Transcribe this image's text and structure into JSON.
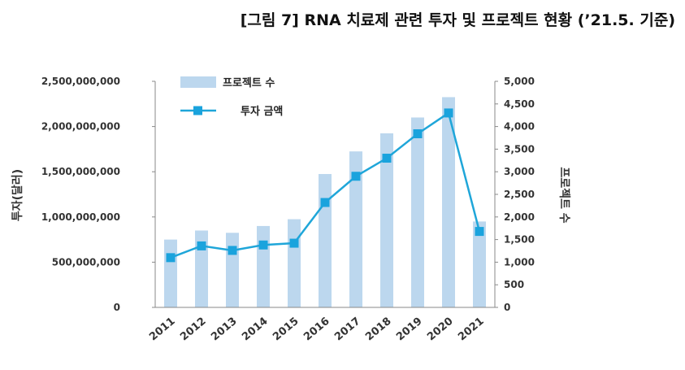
{
  "header": {
    "title": "[그림 7] RNA 치료제 관련 투자 및 프로젝트 현황 (’21.5. 기준)"
  },
  "colors": {
    "bar": "#bcd7ee",
    "line": "#1fa6d9",
    "marker": "#1aa3dd",
    "axis": "#888888",
    "text": "#333333"
  },
  "chart_data": {
    "type": "bar",
    "categories": [
      "2011",
      "2012",
      "2013",
      "2014",
      "2015",
      "2016",
      "2017",
      "2018",
      "2019",
      "2020",
      "2021"
    ],
    "series": [
      {
        "name": "프로젝트 수",
        "type": "bar",
        "axis": "right",
        "values": [
          1500,
          1700,
          1650,
          1800,
          1950,
          2950,
          3450,
          3850,
          4200,
          4650,
          1900
        ]
      },
      {
        "name": "투자 금액",
        "type": "line",
        "axis": "left",
        "values": [
          550000000,
          680000000,
          630000000,
          690000000,
          710000000,
          1160000000,
          1450000000,
          1650000000,
          1920000000,
          2150000000,
          840000000
        ]
      }
    ],
    "ylabel": "투자(달러)",
    "y2label": "프로젝트 수",
    "ylim": [
      0,
      2500000000
    ],
    "y2lim": [
      0,
      5000
    ],
    "yticks": [
      "0",
      "500,000,000",
      "1,000,000,000",
      "1,500,000,000",
      "2,000,000,000",
      "2,500,000,000"
    ],
    "y2ticks": [
      "0",
      "500",
      "1,000",
      "1,500",
      "2,000",
      "2,500",
      "3,000",
      "3,500",
      "4,000",
      "4,500",
      "5,000"
    ],
    "legend_position": "top-left",
    "grid": false
  }
}
